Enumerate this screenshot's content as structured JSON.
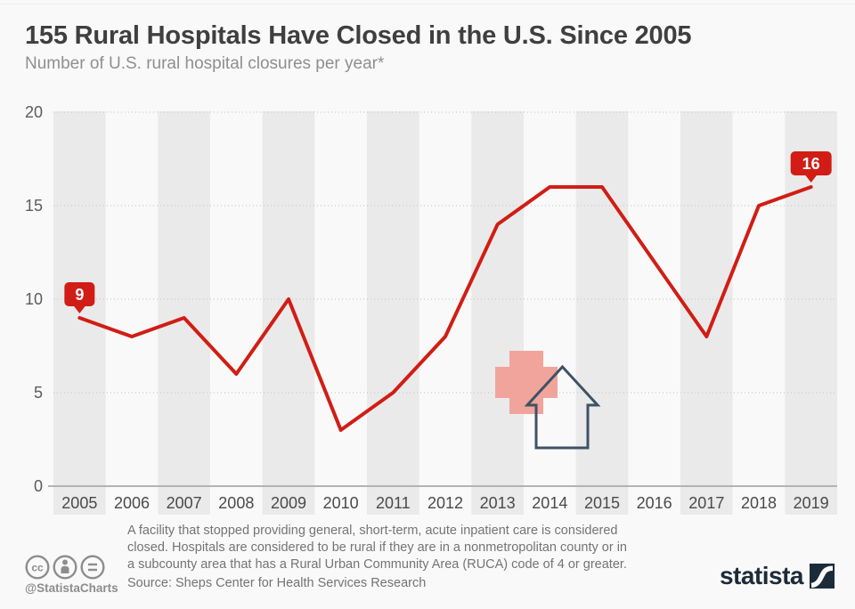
{
  "chart_data": {
    "type": "line",
    "title": "155 Rural Hospitals Have Closed in the U.S. Since 2005",
    "subtitle": "Number of U.S. rural hospital closures per year*",
    "x": [
      2005,
      2006,
      2007,
      2008,
      2009,
      2010,
      2011,
      2012,
      2013,
      2014,
      2015,
      2016,
      2017,
      2018,
      2019
    ],
    "values": [
      9,
      8,
      9,
      6,
      10,
      3,
      5,
      8,
      14,
      16,
      16,
      12,
      8,
      15,
      16
    ],
    "xlabel": "",
    "ylabel": "",
    "ylim": [
      0,
      20
    ],
    "yticks": [
      0,
      5,
      10,
      15,
      20
    ],
    "grid": "horizontal-dotted",
    "legend": "none",
    "banding": "alternating-vertical-year-bands",
    "line_color": "#d11d15",
    "band_color": "#eaeaea",
    "annotations": [
      {
        "x": 2005,
        "value": 9,
        "label": "9"
      },
      {
        "x": 2019,
        "value": 16,
        "label": "16"
      }
    ]
  },
  "decorations": {
    "hospital_cross_color": "#f1a49b",
    "house_outline_color": "#3d5265"
  },
  "footer": {
    "cc_icons": [
      "cc-license-icon",
      "attribution-person-icon",
      "equals-icon"
    ],
    "license_handle": "@StatistaCharts",
    "footnote_lines": [
      "A facility that stopped providing general, short-term, acute inpatient care is considered",
      "closed. Hospitals are considered to be rural if they are in a nonmetropolitan county or in",
      "a subcounty area that has a Rural Urban Community Area (RUCA) code of 4 or greater."
    ],
    "source": "Source: Sheps Center for Health Services Research",
    "brand": "statista"
  },
  "colors": {
    "background": "#f9f9f9",
    "accent_red": "#d11d15",
    "brand_navy": "#1c2b39",
    "gridline": "#c9c9c9",
    "axis_baseline": "#b3b3b3",
    "text_dark": "#3f3f3f",
    "text_muted": "#8f8f8f"
  }
}
